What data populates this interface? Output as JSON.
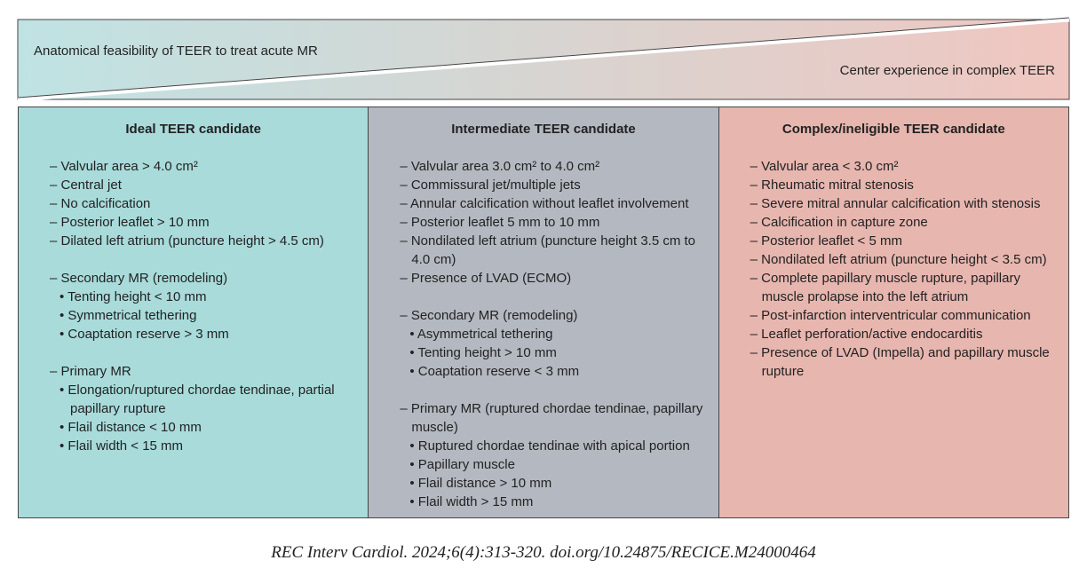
{
  "banner": {
    "left": "Anatomical feasibility of TEER to treat acute MR",
    "right": "Center experience in complex TEER"
  },
  "columns": [
    {
      "title": "Ideal TEER candidate",
      "groups": [
        [
          "– Valvular area > 4.0 cm²",
          "– Central jet",
          "– No calcification",
          "– Posterior leaflet > 10 mm",
          "– Dilated left atrium (puncture height > 4.5 cm)"
        ],
        [
          "– Secondary MR (remodeling)",
          "• Tenting height < 10 mm",
          "• Symmetrical tethering",
          "• Coaptation reserve > 3 mm"
        ],
        [
          "– Primary MR",
          "• Elongation/ruptured chordae tendinae, partial papillary rupture",
          "• Flail distance < 10 mm",
          "• Flail width < 15 mm"
        ]
      ]
    },
    {
      "title": "Intermediate TEER candidate",
      "groups": [
        [
          "– Valvular area 3.0 cm² to 4.0 cm²",
          "– Commissural jet/multiple jets",
          "– Annular calcification without leaflet involvement",
          "– Posterior leaflet 5 mm to 10 mm",
          "– Nondilated left atrium (puncture height 3.5 cm to 4.0 cm)",
          "– Presence of LVAD (ECMO)"
        ],
        [
          "– Secondary MR (remodeling)",
          "• Asymmetrical tethering",
          "• Tenting height > 10 mm",
          "• Coaptation reserve < 3 mm"
        ],
        [
          "– Primary MR (ruptured chordae tendinae, papillary muscle)",
          "• Ruptured chordae tendinae with apical portion",
          "• Papillary muscle",
          "• Flail distance > 10 mm",
          "• Flail width > 15 mm"
        ]
      ]
    },
    {
      "title": "Complex/ineligible TEER candidate",
      "groups": [
        [
          "– Valvular area < 3.0 cm²",
          "– Rheumatic mitral stenosis",
          "– Severe mitral annular calcification with stenosis",
          "– Calcification in capture zone",
          "– Posterior leaflet < 5 mm",
          "– Nondilated left atrium (puncture height < 3.5 cm)",
          "– Complete papillary muscle rupture, papillary muscle prolapse into the left atrium",
          "– Post-infarction interventricular communication",
          "– Leaflet perforation/active endocarditis",
          "– Presence of LVAD (Impella) and papillary muscle rupture"
        ]
      ]
    }
  ],
  "citation": "REC Interv Cardiol. 2024;6(4):313-320. doi.org/10.24875/RECICE.M24000464"
}
